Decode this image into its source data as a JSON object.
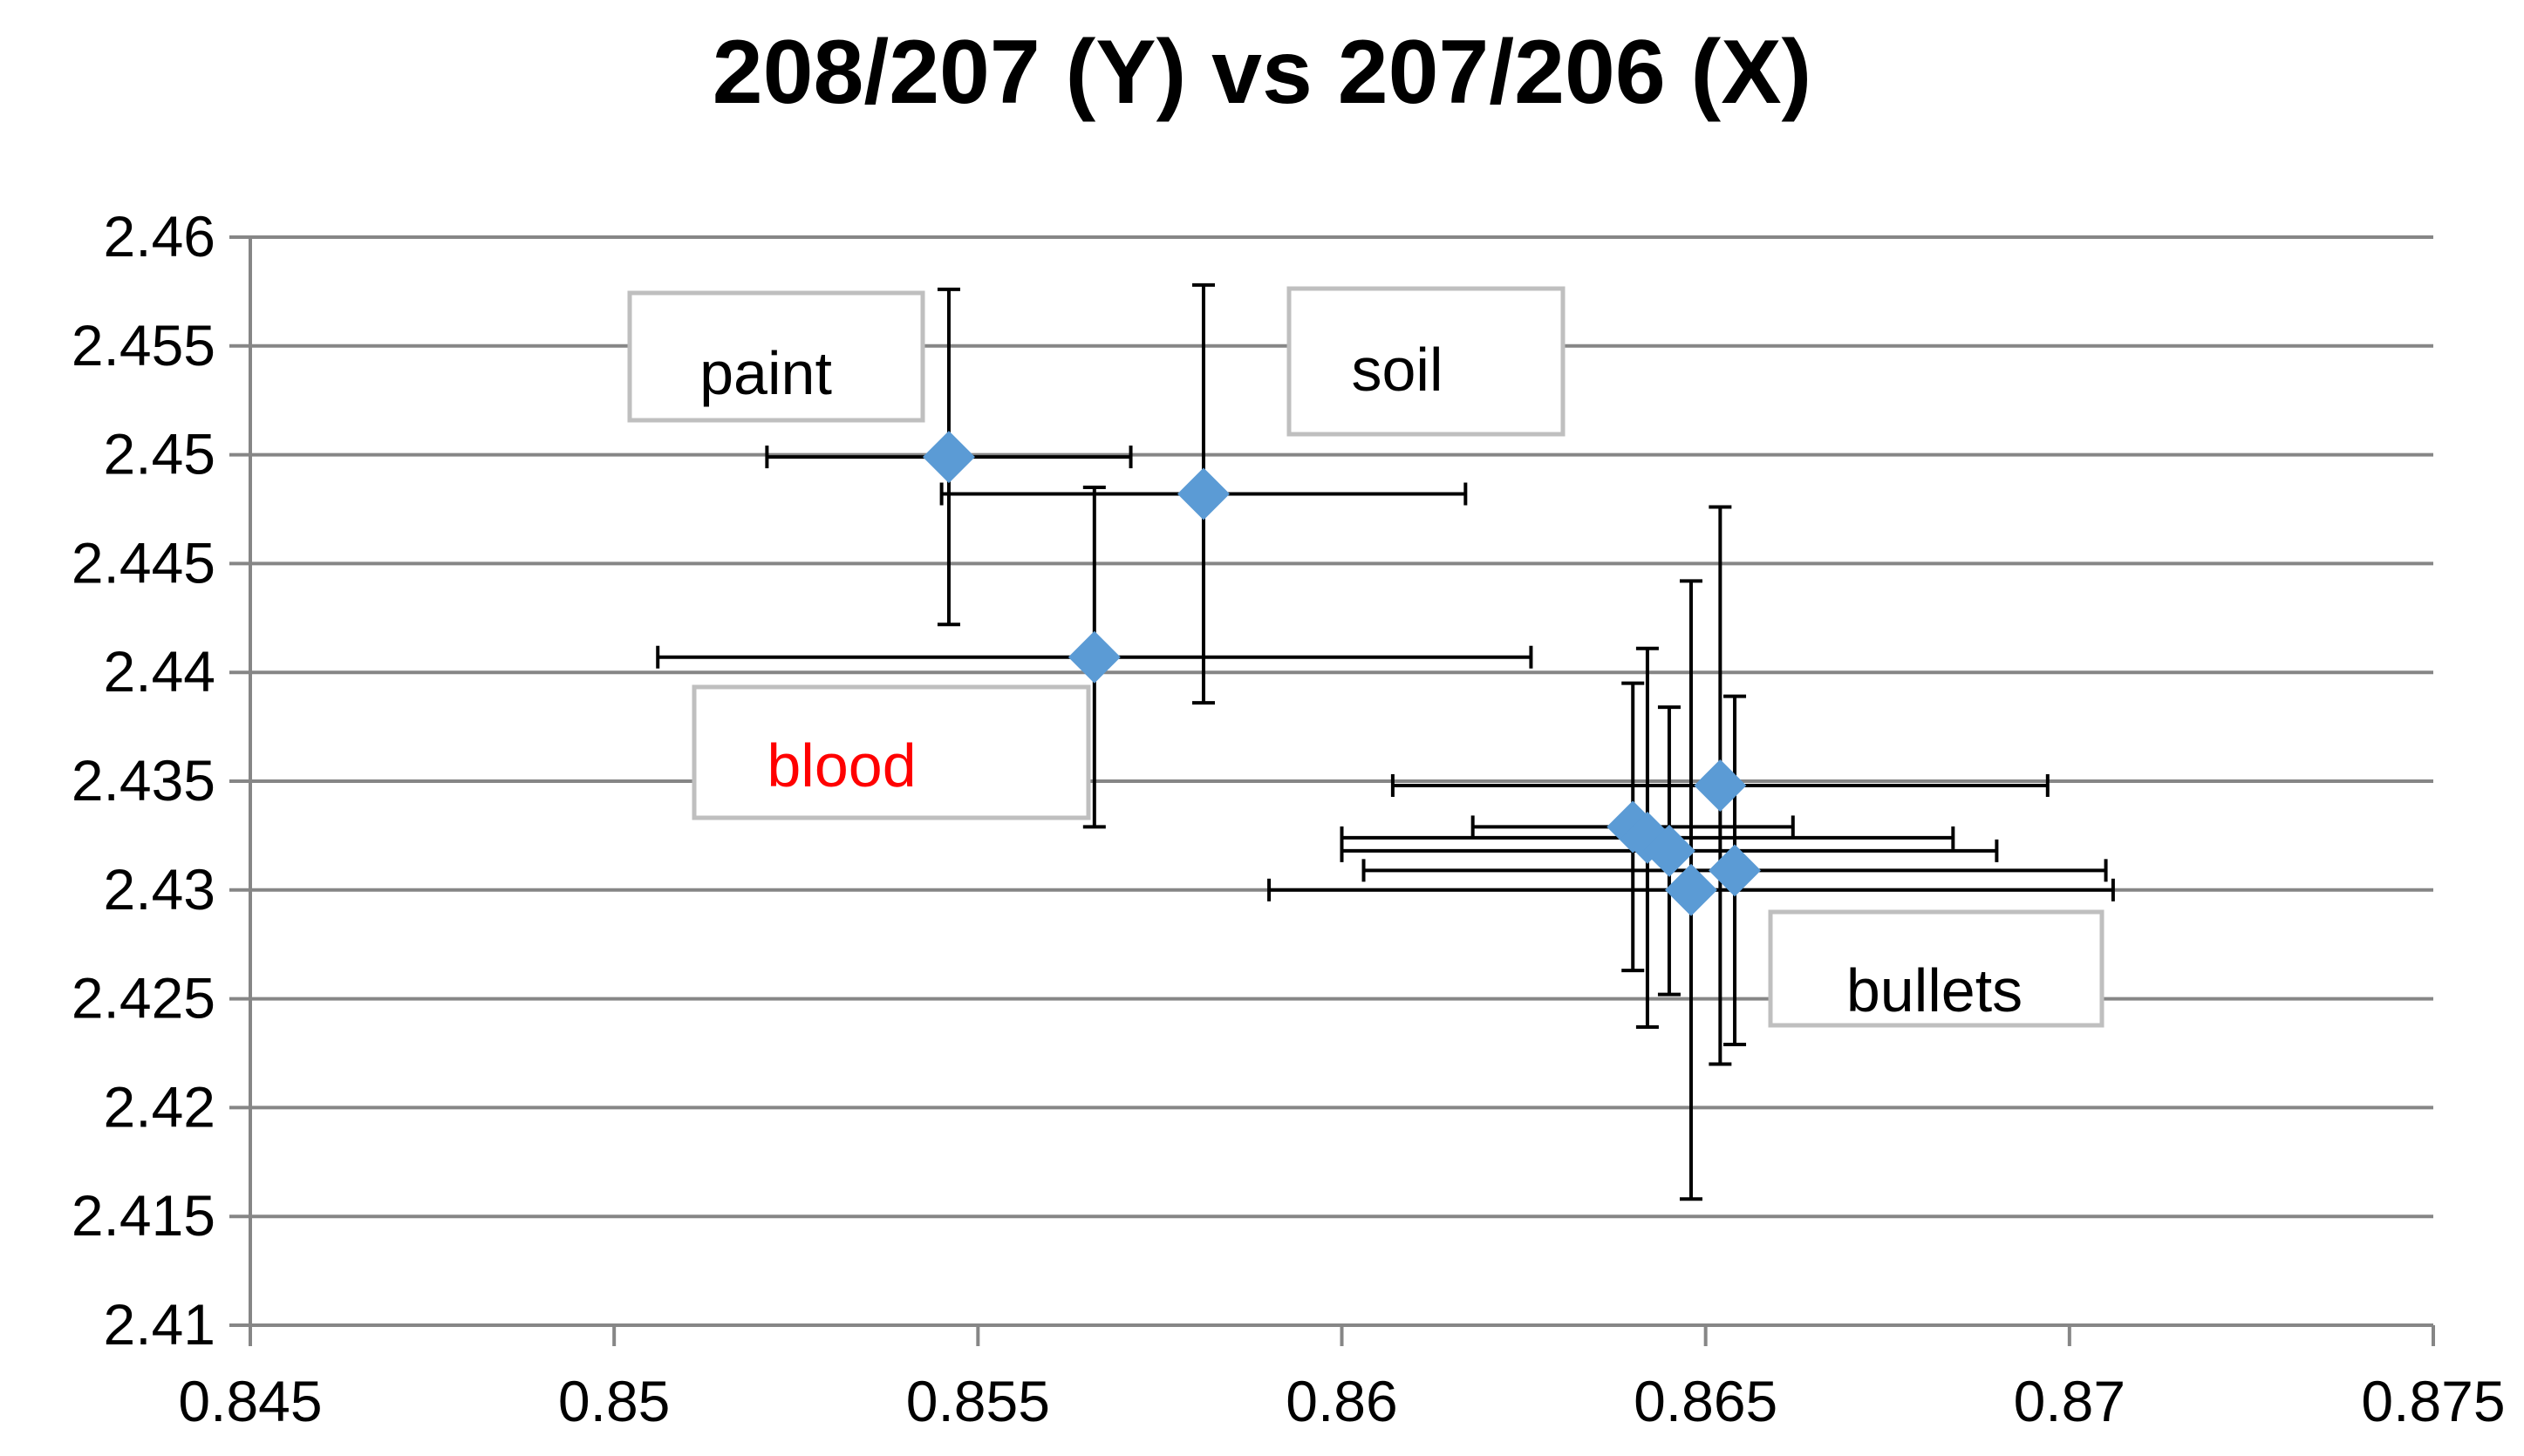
{
  "chart_data": {
    "type": "scatter",
    "title": "208/207 (Y) vs 207/206 (X)",
    "xlabel": "",
    "ylabel": "",
    "xlim": [
      0.845,
      0.875
    ],
    "ylim": [
      2.41,
      2.46
    ],
    "x_ticks": [
      "0.845",
      "0.85",
      "0.855",
      "0.86",
      "0.865",
      "0.87",
      "0.875"
    ],
    "y_ticks": [
      "2.46",
      "2.455",
      "2.45",
      "2.445",
      "2.44",
      "2.435",
      "2.43",
      "2.425",
      "2.42",
      "2.415",
      "2.41"
    ],
    "grid": "horizontal",
    "marker": "diamond",
    "colors": {
      "marker": "#5B9BD5",
      "error_bar": "#000000",
      "grid": "#868686",
      "annotation_border": "#BFBFBF",
      "blood_text": "#FF0000"
    },
    "points": [
      {
        "x": 0.8546,
        "y": 2.4499,
        "x_err": 0.0025,
        "y_err": 0.0077
      },
      {
        "x": 0.8581,
        "y": 2.4482,
        "x_err": 0.0036,
        "y_err": 0.0096
      },
      {
        "x": 0.8566,
        "y": 2.4407,
        "x_err": 0.006,
        "y_err": 0.0078
      },
      {
        "x": 0.8652,
        "y": 2.4348,
        "x_err": 0.0045,
        "y_err": 0.0128
      },
      {
        "x": 0.864,
        "y": 2.4329,
        "x_err": 0.0022,
        "y_err": 0.0066
      },
      {
        "x": 0.8642,
        "y": 2.4324,
        "x_err": 0.0042,
        "y_err": 0.0087
      },
      {
        "x": 0.8645,
        "y": 2.4318,
        "x_err": 0.0045,
        "y_err": 0.0066
      },
      {
        "x": 0.8654,
        "y": 2.4309,
        "x_err": 0.0051,
        "y_err": 0.008
      },
      {
        "x": 0.8648,
        "y": 2.43,
        "x_err": 0.0058,
        "y_err": 0.0142
      }
    ],
    "annotations": [
      {
        "text": "paint"
      },
      {
        "text": "soil"
      },
      {
        "text": "blood"
      },
      {
        "text": "bullets"
      }
    ]
  }
}
